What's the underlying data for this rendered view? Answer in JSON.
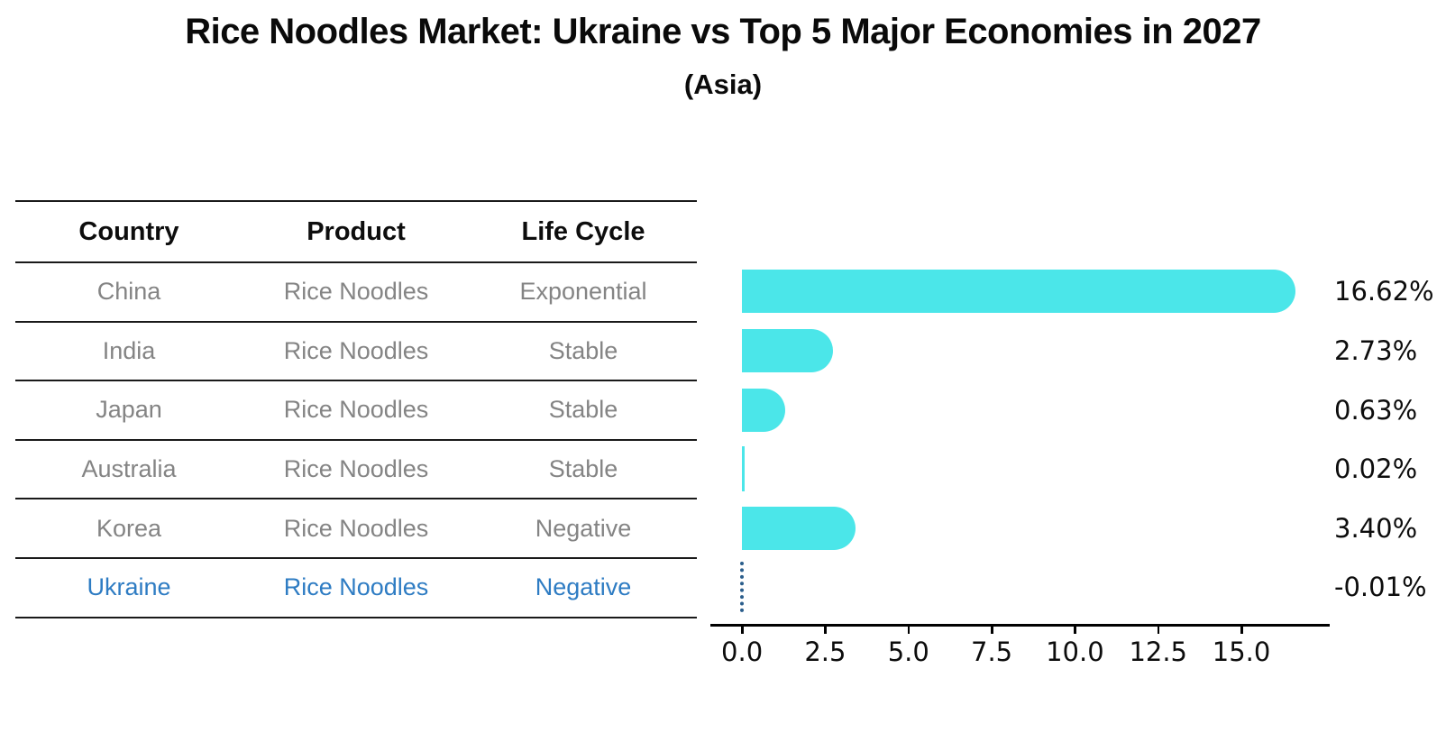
{
  "title": "Rice Noodles Market: Ukraine vs Top 5 Major Economies in 2027",
  "subtitle": "(Asia)",
  "table": {
    "headers": [
      "Country",
      "Product",
      "Life Cycle"
    ],
    "rows": [
      {
        "country": "China",
        "product": "Rice Noodles",
        "life_cycle": "Exponential",
        "highlight": false
      },
      {
        "country": "India",
        "product": "Rice Noodles",
        "life_cycle": "Stable",
        "highlight": false
      },
      {
        "country": "Japan",
        "product": "Rice Noodles",
        "life_cycle": "Stable",
        "highlight": false
      },
      {
        "country": "Australia",
        "product": "Rice Noodles",
        "life_cycle": "Stable",
        "highlight": false
      },
      {
        "country": "Korea",
        "product": "Rice Noodles",
        "life_cycle": "Negative",
        "highlight": false
      },
      {
        "country": "Ukraine",
        "product": "Rice Noodles",
        "life_cycle": "Negative",
        "highlight": true
      }
    ]
  },
  "chart_data": {
    "type": "bar",
    "orientation": "horizontal",
    "title": "Rice Noodles Market: Ukraine vs Top 5 Major Economies in 2027 (Asia)",
    "categories": [
      "China",
      "India",
      "Japan",
      "Australia",
      "Korea",
      "Ukraine"
    ],
    "values": [
      16.62,
      2.73,
      0.63,
      0.02,
      3.4,
      -0.01
    ],
    "value_labels": [
      "16.62%",
      "2.73%",
      "0.63%",
      "0.02%",
      "3.40%",
      "-0.01%"
    ],
    "x_ticks": [
      0.0,
      2.5,
      5.0,
      7.5,
      10.0,
      12.5,
      15.0
    ],
    "x_tick_labels": [
      "0.0",
      "2.5",
      "5.0",
      "7.5",
      "10.0",
      "12.5",
      "15.0"
    ],
    "xlim": [
      -0.95,
      17.57
    ],
    "grid": false,
    "legend": null,
    "bar_color": "#4be6e9",
    "negative_line_color": "#2b5e8c",
    "highlight_text_color": "#2e7cc3",
    "axis_color": "#000000",
    "label_color": "#0d0d0d"
  }
}
